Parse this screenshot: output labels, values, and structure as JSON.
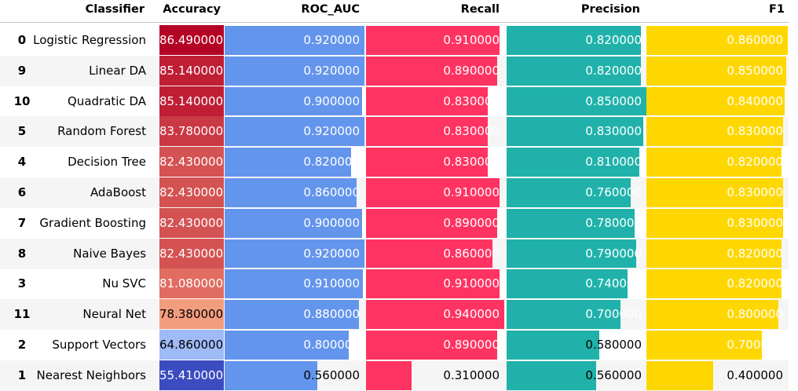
{
  "table": {
    "index_header": "",
    "columns": [
      "Classifier",
      "Accuracy",
      "ROC_AUC",
      "Recall",
      "Precision",
      "F1"
    ]
  },
  "colors": {
    "roc_auc_bar": "#6495ED",
    "recall_bar": "#FF3361",
    "precision_bar": "#20B2AA",
    "f1_bar": "#FFD700",
    "stripe": "#f5f5f5",
    "accuracy_colormap": "coolwarm"
  },
  "chart_data": {
    "type": "table",
    "columns": [
      "Classifier",
      "Accuracy",
      "ROC_AUC",
      "Recall",
      "Precision",
      "F1"
    ],
    "rows": [
      {
        "index": "0",
        "classifier": "Logistic Regression",
        "accuracy": "86.490000",
        "roc_auc": "0.920000",
        "recall": "0.910000",
        "precision": "0.820000",
        "f1": "0.860000"
      },
      {
        "index": "9",
        "classifier": "Linear DA",
        "accuracy": "85.140000",
        "roc_auc": "0.920000",
        "recall": "0.890000",
        "precision": "0.820000",
        "f1": "0.850000"
      },
      {
        "index": "10",
        "classifier": "Quadratic DA",
        "accuracy": "85.140000",
        "roc_auc": "0.900000",
        "recall": "0.830000",
        "precision": "0.850000",
        "f1": "0.840000"
      },
      {
        "index": "5",
        "classifier": "Random Forest",
        "accuracy": "83.780000",
        "roc_auc": "0.920000",
        "recall": "0.830000",
        "precision": "0.830000",
        "f1": "0.830000"
      },
      {
        "index": "4",
        "classifier": "Decision Tree",
        "accuracy": "82.430000",
        "roc_auc": "0.820000",
        "recall": "0.830000",
        "precision": "0.810000",
        "f1": "0.820000"
      },
      {
        "index": "6",
        "classifier": "AdaBoost",
        "accuracy": "82.430000",
        "roc_auc": "0.860000",
        "recall": "0.910000",
        "precision": "0.760000",
        "f1": "0.830000"
      },
      {
        "index": "7",
        "classifier": "Gradient Boosting",
        "accuracy": "82.430000",
        "roc_auc": "0.900000",
        "recall": "0.890000",
        "precision": "0.780000",
        "f1": "0.830000"
      },
      {
        "index": "8",
        "classifier": "Naive Bayes",
        "accuracy": "82.430000",
        "roc_auc": "0.920000",
        "recall": "0.860000",
        "precision": "0.790000",
        "f1": "0.820000"
      },
      {
        "index": "3",
        "classifier": "Nu SVC",
        "accuracy": "81.080000",
        "roc_auc": "0.910000",
        "recall": "0.910000",
        "precision": "0.740000",
        "f1": "0.820000"
      },
      {
        "index": "11",
        "classifier": "Neural Net",
        "accuracy": "78.380000",
        "roc_auc": "0.880000",
        "recall": "0.940000",
        "precision": "0.700000",
        "f1": "0.800000"
      },
      {
        "index": "2",
        "classifier": "Support Vectors",
        "accuracy": "64.860000",
        "roc_auc": "0.800000",
        "recall": "0.890000",
        "precision": "0.580000",
        "f1": "0.700000"
      },
      {
        "index": "1",
        "classifier": "Nearest Neighbors",
        "accuracy": "55.410000",
        "roc_auc": "0.560000",
        "recall": "0.310000",
        "precision": "0.560000",
        "f1": "0.400000"
      }
    ]
  }
}
